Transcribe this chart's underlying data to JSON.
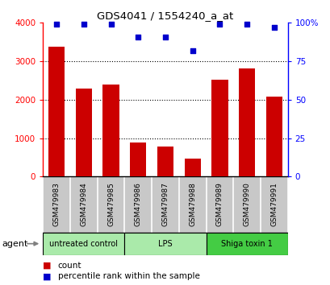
{
  "title": "GDS4041 / 1554240_a_at",
  "samples": [
    "GSM479983",
    "GSM479984",
    "GSM479985",
    "GSM479986",
    "GSM479987",
    "GSM479988",
    "GSM479989",
    "GSM479990",
    "GSM479991"
  ],
  "counts": [
    3380,
    2300,
    2390,
    880,
    780,
    470,
    2520,
    2820,
    2080
  ],
  "percentiles": [
    99,
    99,
    99,
    91,
    91,
    82,
    99,
    99,
    97
  ],
  "ylim_left": [
    0,
    4000
  ],
  "ylim_right": [
    0,
    100
  ],
  "yticks_left": [
    0,
    1000,
    2000,
    3000,
    4000
  ],
  "yticks_right": [
    0,
    25,
    50,
    75,
    100
  ],
  "yticklabels_right": [
    "0",
    "25",
    "50",
    "75",
    "100%"
  ],
  "bar_color": "#cc0000",
  "scatter_color": "#0000cc",
  "bar_width": 0.6,
  "agent_label": "agent",
  "legend_count_label": "count",
  "legend_pct_label": "percentile rank within the sample",
  "background_color": "#ffffff",
  "tick_label_area_color": "#c8c8c8",
  "group_info": [
    {
      "label": "untreated control",
      "start": 0,
      "end": 3,
      "color": "#aaeaaa"
    },
    {
      "label": "LPS",
      "start": 3,
      "end": 6,
      "color": "#aaeaaa"
    },
    {
      "label": "Shiga toxin 1",
      "start": 6,
      "end": 9,
      "color": "#44cc44"
    }
  ]
}
